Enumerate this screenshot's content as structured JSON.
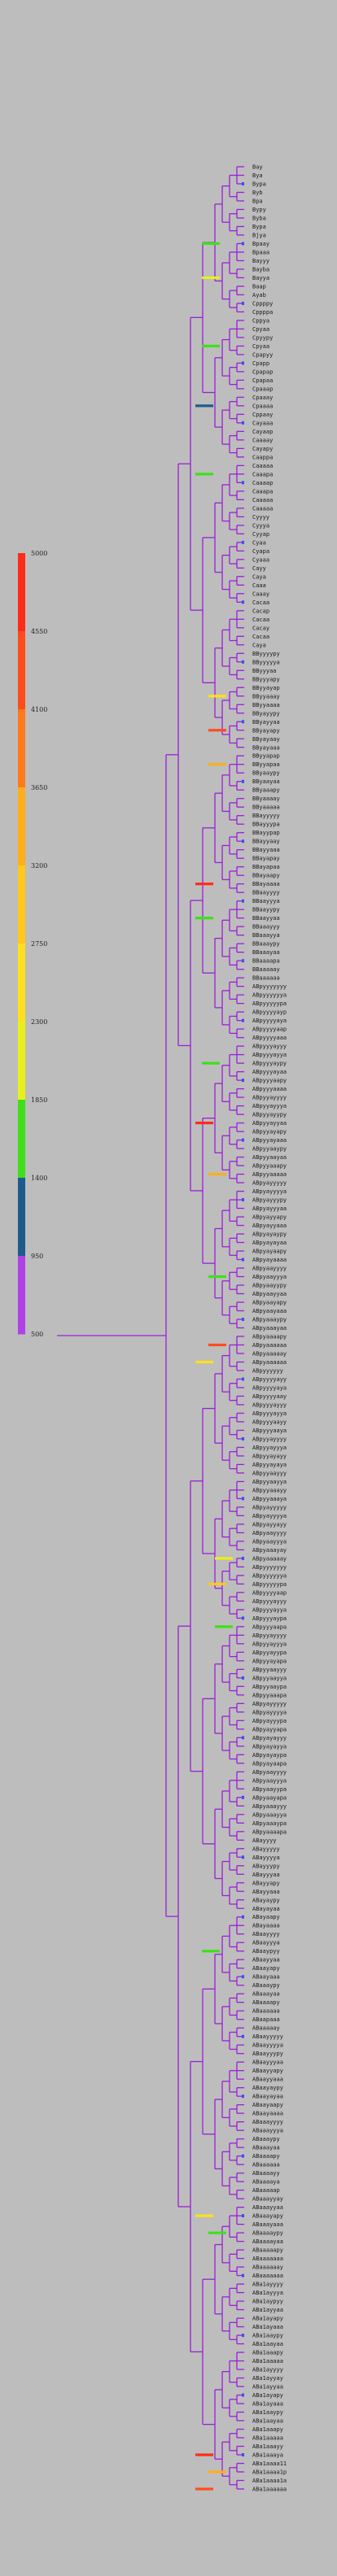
{
  "legend": {
    "ticks": [
      "5000",
      "4550",
      "4100",
      "3650",
      "3200",
      "2750",
      "2300",
      "1850",
      "1400",
      "950",
      "500"
    ],
    "bands": [
      {
        "color": "#ff2a1a"
      },
      {
        "color": "#ff4d1a"
      },
      {
        "color": "#ff7a1a"
      },
      {
        "color": "#ffae1a"
      },
      {
        "color": "#ffc81a"
      },
      {
        "color": "#ffe01a"
      },
      {
        "color": "#e8f01a"
      },
      {
        "color": "#3ee01a"
      },
      {
        "color": "#1e5a8c"
      },
      {
        "color": "#b040e8"
      }
    ]
  },
  "colors": {
    "branch": "#9b1fd6",
    "branch_dark": "#2a1ad8",
    "leaf_dot": "#3a4cff"
  },
  "leaves": [
    "Bay",
    "Bya",
    "Bypa",
    "Byb",
    "Bpa",
    "Bypy",
    "Byba",
    "Bypa",
    "Bjya",
    "Bpaay",
    "Bpaaa",
    "Bayyy",
    "Bayba",
    "Bayya",
    "Baap",
    "Ayab",
    "Cppppy",
    "Cppppa",
    "Cppya",
    "Cpyaa",
    "Cpyypy",
    "Cpyaa",
    "Cpapyy",
    "Cpapp",
    "Cpapap",
    "Cpapaa",
    "Cpaaap",
    "Cpaaay",
    "Cpaaaa",
    "Cppaay",
    "Cayaaa",
    "Cayaap",
    "Caaaay",
    "Cayapy",
    "Caappa",
    "Caaaaa",
    "Caaapa",
    "Caaaap",
    "Caaapa",
    "Caaaaa",
    "Caaaaa",
    "Cyyyy",
    "Cyyya",
    "Cyyap",
    "Cyaa",
    "Cyapa",
    "Cyaaa",
    "Cayy",
    "Caya",
    "Caaa",
    "Caaay",
    "Cacaa",
    "Cacap",
    "Cacaa",
    "Cacay",
    "Cacaa",
    "Caya",
    "BByyyypy",
    "BByyyyya",
    "BByyyaa",
    "BByyyapy",
    "BByyayap",
    "BByyaaay",
    "BByyaaaa",
    "BByayypy",
    "BByayyaa",
    "BByayapy",
    "BByayaay",
    "BByayaaa",
    "BByyapap",
    "BByyapaa",
    "BByaaypy",
    "BByaayaa",
    "BByaaapy",
    "BByaaaay",
    "BByaaaaa",
    "BBayyyyy",
    "BBayyypa",
    "BBayypap",
    "BBayyaay",
    "BBayyaaa",
    "BBayapay",
    "BBayapaa",
    "BBayaapy",
    "BBayaaaa",
    "BBaayyyy",
    "BBaayyya",
    "BBaayypy",
    "BBaayyaa",
    "BBaaayyy",
    "BBaaayya",
    "BBaaaypy",
    "BBaaayaa",
    "BBaaaapa",
    "BBaaaaay",
    "BBaaaaaa",
    "ABpyyyyyyy",
    "ABpyyyyyya",
    "ABpyyyyypa",
    "ABpyyyyayp",
    "ABpyyyyaya",
    "ABpyyyyaap",
    "ABpyyyyaaa",
    "ABpyyyayyy",
    "ABpyyyayya",
    "ABpyyyaypy",
    "ABpyyyayaa",
    "ABpyyyaapy",
    "ABpyyyaaaa",
    "ABpyyayyyy",
    "ABpyyayyya",
    "ABpyyayypy",
    "ABpyyayyaa",
    "ABpyyayapy",
    "ABpyyayaaa",
    "ABpyyaaypy",
    "ABpyyaayaa",
    "ABpyyaaapy",
    "ABpyyaaaaa",
    "ABpyayyyyy",
    "ABpyayyyya",
    "ABpyayyypy",
    "ABpyayyyaa",
    "ABpyayyapy",
    "ABpyayyaaa",
    "ABpyayaypy",
    "ABpyayayaa",
    "ABpyayaapy",
    "ABpyayaaaa",
    "ABpyaayyyy",
    "ABpyaayyya",
    "ABpyaayypy",
    "ABpyaayyaa",
    "ABpyaayapy",
    "ABpyaayaaa",
    "ABpyaaaypy",
    "ABpyaaayaa",
    "ABpyaaaapy",
    "ABpyaaaaaa",
    "ABpyaaaaay",
    "ABpyaaaaaa",
    "ABpyyyyyy",
    "ABpyyyyayy",
    "ABpyyyyaya",
    "ABpyyyyaay",
    "ABpyyyayyy",
    "ABpyyyayya",
    "ABpyyyaayy",
    "ABpyyyaaya",
    "ABpyyayyyy",
    "ABpyyayyya",
    "ABpyyayayy",
    "ABpyyayaya",
    "ABpyyaayyy",
    "ABpyyaayya",
    "ABpyyaaayy",
    "ABpyyaaaya",
    "ABpyayyyyy",
    "ABpyayyyya",
    "ABpyayyayy",
    "ABpyaayyyy",
    "ABpyaayyya",
    "ABpyaaayay",
    "ABpyaaaaay",
    "ABpyyyyyyy",
    "ABpyyyyyya",
    "ABpyyyyypa",
    "ABpyyyyaap",
    "ABpyyyayyy",
    "ABpyyyayya",
    "ABpyyyaypa",
    "ABpyyyaapa",
    "ABpyyayyyy",
    "ABpyyayyya",
    "ABpyyayypa",
    "ABpyyayapa",
    "ABpyyaayyy",
    "ABpyyaayya",
    "ABpyyaaypa",
    "ABpyyaaapa",
    "ABpyayyyyy",
    "ABpyayyyya",
    "ABpyayyypa",
    "ABpyayyapa",
    "ABpyayayyy",
    "ABpyayayya",
    "ABpyayaypa",
    "ABpyayaapa",
    "ABpyaayyyy",
    "ABpyaayyya",
    "ABpyaayypa",
    "ABpyaayapa",
    "ABpyaaayyy",
    "ABpyaaayya",
    "ABpyaaaypa",
    "ABpyaaaapa",
    "ABayyyy",
    "ABayyyyy",
    "ABayyyya",
    "ABayyypy",
    "ABayyyaa",
    "ABayyapy",
    "ABayyaaa",
    "ABayaypy",
    "ABayayaa",
    "ABayaapy",
    "ABayaaaa",
    "ABaayyyy",
    "ABaayyya",
    "ABaaypyy",
    "ABaayyaa",
    "ABaayapy",
    "ABaayaaa",
    "ABaaaypy",
    "ABaaayaa",
    "ABaaaapy",
    "ABaaaaaa",
    "ABaapaaa",
    "ABaaaaay",
    "ABaayyyyy",
    "ABaayyyya",
    "ABaayyypy",
    "ABaayyyaa",
    "ABaayyapy",
    "ABaayyaaa",
    "ABaayaypy",
    "ABaayayaa",
    "ABaayaapy",
    "ABaayaaaa",
    "ABaaayyyy",
    "ABaaayyya",
    "ABaaaypy",
    "ABaaayaa",
    "ABaaaapy",
    "ABaaaaaa",
    "ABaaaayy",
    "ABaaaaya",
    "ABaaaaap",
    "ABaaayyay",
    "ABaaayyaa",
    "ABaaayapy",
    "ABaaayaaa",
    "ABaaaaypy",
    "ABaaaayaa",
    "ABaaaaapy",
    "ABaaaaaaa",
    "ABaaaaaay",
    "ABaaaaaaa",
    "ABa1ayyyy",
    "ABa1ayyya",
    "ABa1aypyy",
    "ABa1ayyaa",
    "ABa1ayapy",
    "ABa1ayaaa",
    "ABa1aaypy",
    "ABa1aayaa",
    "ABa1aaapy",
    "ABa1aaaaa",
    "ABa1ayyyy",
    "ABa1ayyay",
    "ABa1ayyaa",
    "ABa1ayapy",
    "ABa1ayaaa",
    "ABa1aaypy",
    "ABa1aayaa",
    "ABa1aaapy",
    "ABa1aaaaa",
    "ABa1aaayy",
    "ABa1aaaya",
    "ABa1aaaa11",
    "ABa1aaaa1p",
    "ABa1aaaa1a",
    "ABa1aaaaaa"
  ]
}
